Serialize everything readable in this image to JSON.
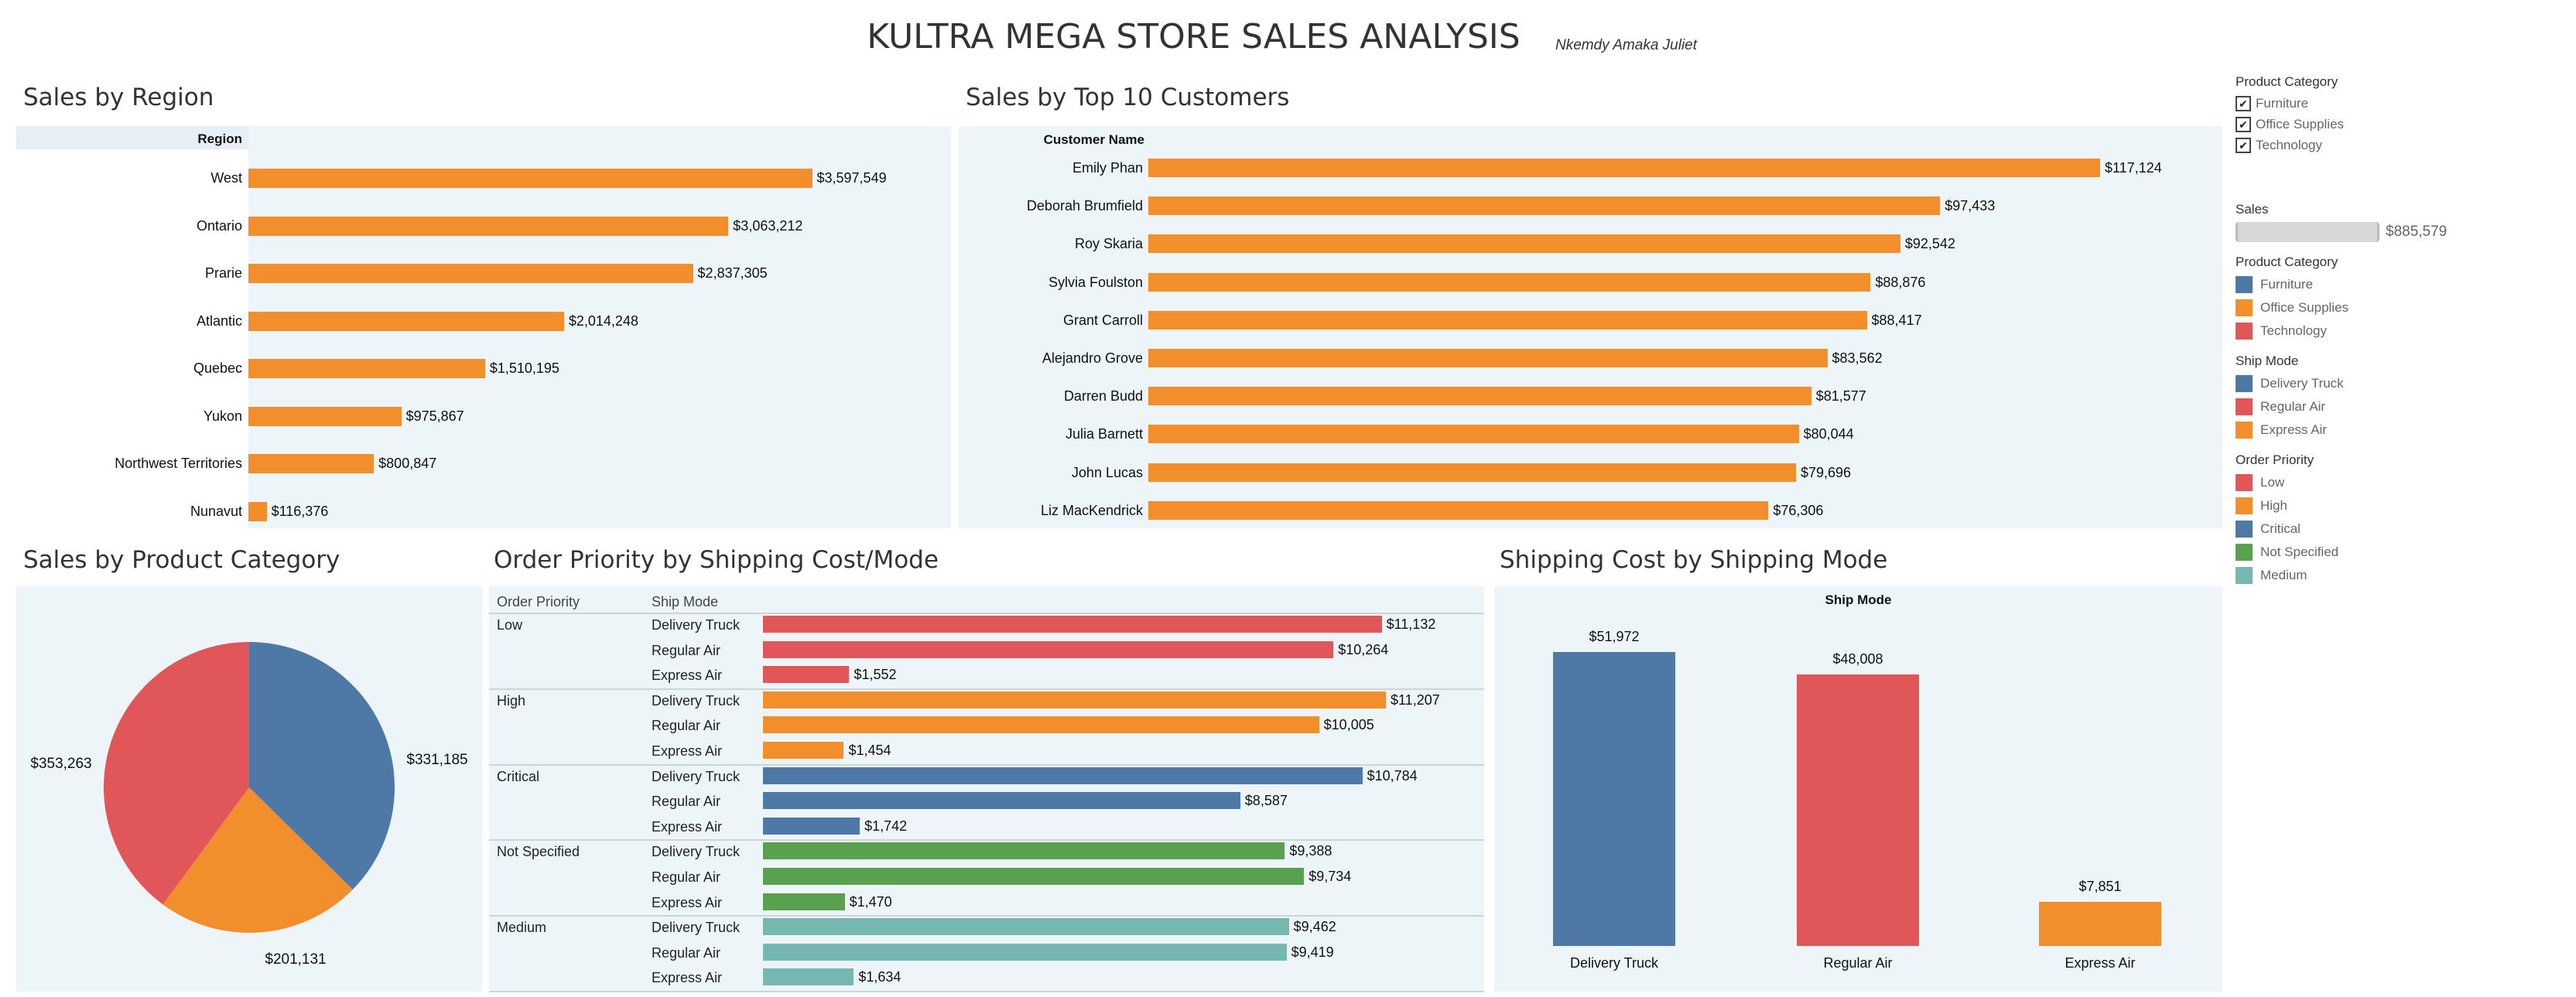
{
  "header": {
    "title": "KULTRA MEGA STORE SALES ANALYSIS",
    "author": "Nkemdy Amaka Juliet"
  },
  "colors": {
    "orange": "#F28E2B",
    "blue": "#4E79A7",
    "red": "#E15759",
    "green": "#59A14F",
    "teal": "#76B7B2",
    "panel_bg": "#EEF5F9"
  },
  "legend": {
    "filter_title": "Product Category",
    "filter_items": [
      {
        "label": "Furniture",
        "checked": true
      },
      {
        "label": "Office Supplies",
        "checked": true
      },
      {
        "label": "Technology",
        "checked": true
      }
    ],
    "sales_title": "Sales",
    "sales_value": "$885,579",
    "category_title": "Product Category",
    "category_items": [
      {
        "label": "Furniture",
        "color": "#4E79A7"
      },
      {
        "label": "Office Supplies",
        "color": "#F28E2B"
      },
      {
        "label": "Technology",
        "color": "#E15759"
      }
    ],
    "shipmode_title": "Ship Mode",
    "shipmode_items": [
      {
        "label": "Delivery Truck",
        "color": "#4E79A7"
      },
      {
        "label": "Regular Air",
        "color": "#E15759"
      },
      {
        "label": "Express Air",
        "color": "#F28E2B"
      }
    ],
    "priority_title": "Order Priority",
    "priority_items": [
      {
        "label": "Low",
        "color": "#E15759"
      },
      {
        "label": "High",
        "color": "#F28E2B"
      },
      {
        "label": "Critical",
        "color": "#4E79A7"
      },
      {
        "label": "Not Specified",
        "color": "#59A14F"
      },
      {
        "label": "Medium",
        "color": "#76B7B2"
      }
    ]
  },
  "chart_data": [
    {
      "id": "region",
      "type": "bar",
      "orientation": "horizontal",
      "title": "Sales by Region",
      "row_header": "Region",
      "categories": [
        "West",
        "Ontario",
        "Prarie",
        "Atlantic",
        "Quebec",
        "Yukon",
        "Northwest Territories",
        "Nunavut"
      ],
      "values": [
        3597549,
        3063212,
        2837305,
        2014248,
        1510195,
        975867,
        800847,
        116376
      ],
      "labels": [
        "$3,597,549",
        "$3,063,212",
        "$2,837,305",
        "$2,014,248",
        "$1,510,195",
        "$975,867",
        "$800,847",
        "$116,376"
      ],
      "color": "#F28E2B",
      "xlim": [
        0,
        4000000
      ]
    },
    {
      "id": "customers",
      "type": "bar",
      "orientation": "horizontal",
      "title": "Sales by Top 10 Customers",
      "row_header": "Customer Name",
      "categories": [
        "Emily Phan",
        "Deborah Brumfield",
        "Roy Skaria",
        "Sylvia Foulston",
        "Grant Carroll",
        "Alejandro Grove",
        "Darren Budd",
        "Julia Barnett",
        "John Lucas",
        "Liz MacKendrick"
      ],
      "values": [
        117124,
        97433,
        92542,
        88876,
        88417,
        83562,
        81577,
        80044,
        79696,
        76306
      ],
      "labels": [
        "$117,124",
        "$97,433",
        "$92,542",
        "$88,876",
        "$88,417",
        "$83,562",
        "$81,577",
        "$80,044",
        "$79,696",
        "$76,306"
      ],
      "color": "#F28E2B",
      "xlim": [
        0,
        125000
      ]
    },
    {
      "id": "category_pie",
      "type": "pie",
      "title": "Sales by Product Category",
      "categories": [
        "Furniture",
        "Office Supplies",
        "Technology"
      ],
      "values": [
        331185,
        201131,
        353263
      ],
      "labels": [
        "$331,185",
        "$201,131",
        "$353,263"
      ],
      "colors": [
        "#4E79A7",
        "#F28E2B",
        "#E15759"
      ]
    },
    {
      "id": "priority_shipping",
      "type": "bar",
      "orientation": "horizontal",
      "title": "Order Priority by Shipping Cost/Mode",
      "headers": [
        "Order Priority",
        "Ship Mode"
      ],
      "xlim": [
        0,
        12000
      ],
      "groups": [
        {
          "priority": "Low",
          "color": "#E15759",
          "rows": [
            {
              "mode": "Delivery Truck",
              "value": 11132,
              "label": "$11,132"
            },
            {
              "mode": "Regular Air",
              "value": 10264,
              "label": "$10,264"
            },
            {
              "mode": "Express Air",
              "value": 1552,
              "label": "$1,552"
            }
          ]
        },
        {
          "priority": "High",
          "color": "#F28E2B",
          "rows": [
            {
              "mode": "Delivery Truck",
              "value": 11207,
              "label": "$11,207"
            },
            {
              "mode": "Regular Air",
              "value": 10005,
              "label": "$10,005"
            },
            {
              "mode": "Express Air",
              "value": 1454,
              "label": "$1,454"
            }
          ]
        },
        {
          "priority": "Critical",
          "color": "#4E79A7",
          "rows": [
            {
              "mode": "Delivery Truck",
              "value": 10784,
              "label": "$10,784"
            },
            {
              "mode": "Regular Air",
              "value": 8587,
              "label": "$8,587"
            },
            {
              "mode": "Express Air",
              "value": 1742,
              "label": "$1,742"
            }
          ]
        },
        {
          "priority": "Not Specified",
          "color": "#59A14F",
          "rows": [
            {
              "mode": "Delivery Truck",
              "value": 9388,
              "label": "$9,388"
            },
            {
              "mode": "Regular Air",
              "value": 9734,
              "label": "$9,734"
            },
            {
              "mode": "Express Air",
              "value": 1470,
              "label": "$1,470"
            }
          ]
        },
        {
          "priority": "Medium",
          "color": "#76B7B2",
          "rows": [
            {
              "mode": "Delivery Truck",
              "value": 9462,
              "label": "$9,462"
            },
            {
              "mode": "Regular Air",
              "value": 9419,
              "label": "$9,419"
            },
            {
              "mode": "Express Air",
              "value": 1634,
              "label": "$1,634"
            }
          ]
        }
      ]
    },
    {
      "id": "shipping_mode",
      "type": "bar",
      "orientation": "vertical",
      "title": "Shipping Cost by Shipping Mode",
      "column_header": "Ship Mode",
      "categories": [
        "Delivery Truck",
        "Regular Air",
        "Express Air"
      ],
      "values": [
        51972,
        48008,
        7851
      ],
      "labels": [
        "$51,972",
        "$48,008",
        "$7,851"
      ],
      "colors": [
        "#4E79A7",
        "#E15759",
        "#F28E2B"
      ],
      "ylim": [
        0,
        55000
      ]
    }
  ]
}
